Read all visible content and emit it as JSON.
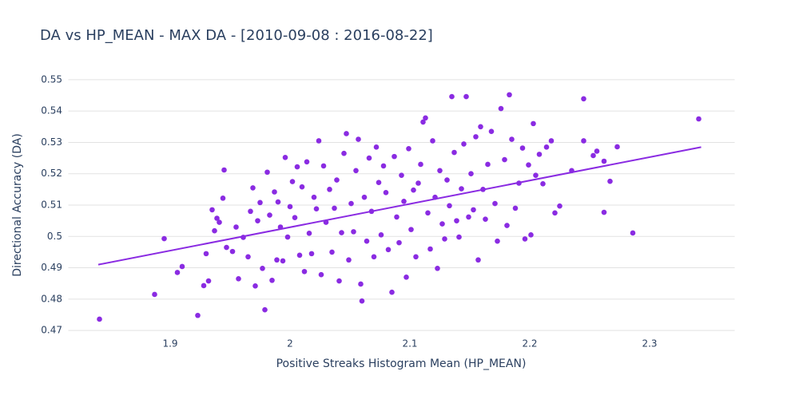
{
  "chart_data": {
    "type": "scatter",
    "title": "DA vs HP_MEAN - MAX DA - [2010-09-08 : 2016-08-22]",
    "x_label": "Positive Streaks Histogram Mean (HP_MEAN)",
    "y_label": "Directional Accuracy (DA)",
    "color": "#8a2be2",
    "xlim": [
      1.815,
      2.371
    ],
    "xticks": [
      1.9,
      2,
      2.1,
      2.2,
      2.3
    ],
    "ylim": [
      0.4685,
      0.5515
    ],
    "yticks": [
      0.47,
      0.48,
      0.49,
      0.5,
      0.51,
      0.52,
      0.53,
      0.54,
      0.55
    ],
    "grid": true,
    "x": [
      1.841,
      1.887,
      1.895,
      1.91,
      1.906,
      1.923,
      1.928,
      1.93,
      1.932,
      1.935,
      1.937,
      1.939,
      1.941,
      1.944,
      1.945,
      1.947,
      1.952,
      1.955,
      1.957,
      1.961,
      1.965,
      1.967,
      1.969,
      1.971,
      1.973,
      1.975,
      1.977,
      1.979,
      1.981,
      1.983,
      1.985,
      1.987,
      1.989,
      1.99,
      1.992,
      1.994,
      1.996,
      1.998,
      2.0,
      2.002,
      2.004,
      2.006,
      2.008,
      2.01,
      2.012,
      2.014,
      2.016,
      2.018,
      2.02,
      2.022,
      2.024,
      2.026,
      2.028,
      2.03,
      2.033,
      2.035,
      2.037,
      2.039,
      2.041,
      2.043,
      2.045,
      2.047,
      2.049,
      2.051,
      2.053,
      2.055,
      2.057,
      2.059,
      2.06,
      2.062,
      2.064,
      2.066,
      2.068,
      2.07,
      2.072,
      2.074,
      2.076,
      2.078,
      2.08,
      2.082,
      2.085,
      2.087,
      2.089,
      2.091,
      2.093,
      2.095,
      2.097,
      2.099,
      2.101,
      2.103,
      2.105,
      2.107,
      2.109,
      2.111,
      2.113,
      2.115,
      2.117,
      2.119,
      2.121,
      2.123,
      2.125,
      2.127,
      2.129,
      2.131,
      2.133,
      2.135,
      2.137,
      2.139,
      2.141,
      2.143,
      2.145,
      2.147,
      2.149,
      2.151,
      2.153,
      2.155,
      2.157,
      2.159,
      2.161,
      2.163,
      2.165,
      2.168,
      2.171,
      2.173,
      2.176,
      2.179,
      2.181,
      2.183,
      2.185,
      2.188,
      2.191,
      2.194,
      2.196,
      2.199,
      2.201,
      2.203,
      2.205,
      2.208,
      2.211,
      2.214,
      2.218,
      2.221,
      2.225,
      2.235,
      2.245,
      2.245,
      2.253,
      2.256,
      2.262,
      2.262,
      2.267,
      2.273,
      2.286,
      2.341
    ],
    "y": [
      0.4736,
      0.4815,
      0.4993,
      0.4904,
      0.4885,
      0.4748,
      0.4843,
      0.4945,
      0.4858,
      0.5085,
      0.5018,
      0.5058,
      0.5045,
      0.5122,
      0.5212,
      0.4965,
      0.4952,
      0.503,
      0.4865,
      0.4997,
      0.4935,
      0.508,
      0.5155,
      0.4842,
      0.505,
      0.5108,
      0.4898,
      0.4766,
      0.5205,
      0.5068,
      0.486,
      0.5142,
      0.4925,
      0.511,
      0.503,
      0.4922,
      0.5252,
      0.4998,
      0.5095,
      0.5175,
      0.506,
      0.5222,
      0.494,
      0.5158,
      0.4888,
      0.5238,
      0.501,
      0.4945,
      0.5125,
      0.5088,
      0.5305,
      0.4878,
      0.5225,
      0.5045,
      0.515,
      0.495,
      0.509,
      0.518,
      0.4858,
      0.5012,
      0.5265,
      0.5328,
      0.4925,
      0.5105,
      0.5015,
      0.521,
      0.531,
      0.4848,
      0.4794,
      0.5125,
      0.4985,
      0.525,
      0.508,
      0.4935,
      0.5285,
      0.5172,
      0.5005,
      0.5225,
      0.514,
      0.4958,
      0.4822,
      0.5255,
      0.5062,
      0.498,
      0.5195,
      0.5112,
      0.487,
      0.528,
      0.5022,
      0.5148,
      0.4935,
      0.517,
      0.523,
      0.5365,
      0.5378,
      0.5075,
      0.496,
      0.5305,
      0.5125,
      0.4898,
      0.521,
      0.504,
      0.4992,
      0.518,
      0.5098,
      0.5446,
      0.5268,
      0.505,
      0.4998,
      0.5152,
      0.5295,
      0.5446,
      0.5062,
      0.52,
      0.5085,
      0.5318,
      0.4925,
      0.535,
      0.515,
      0.5055,
      0.523,
      0.5335,
      0.5105,
      0.4985,
      0.5408,
      0.5245,
      0.5035,
      0.5452,
      0.531,
      0.509,
      0.517,
      0.5282,
      0.4992,
      0.5228,
      0.5005,
      0.536,
      0.5195,
      0.5262,
      0.5168,
      0.5285,
      0.5305,
      0.5075,
      0.5097,
      0.521,
      0.5439,
      0.5305,
      0.5258,
      0.5272,
      0.524,
      0.5077,
      0.5176,
      0.5286,
      0.5011,
      0.5375
    ],
    "trendline": {
      "x": [
        1.84,
        2.343
      ],
      "y": [
        0.491,
        0.5285
      ],
      "color": "#8a2be2"
    }
  }
}
